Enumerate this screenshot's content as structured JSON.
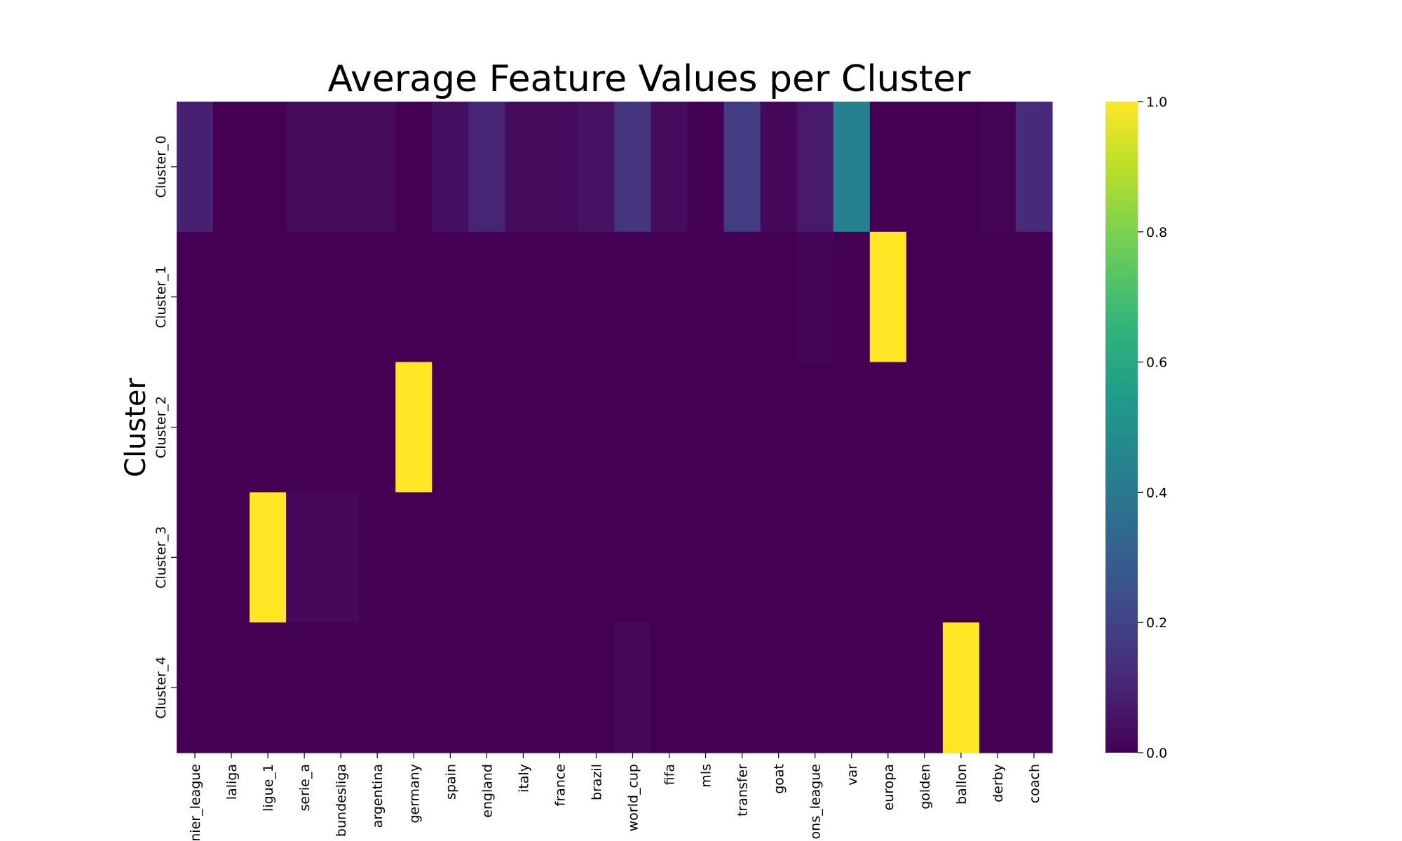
{
  "chart_data": {
    "type": "heatmap",
    "title": "Average Feature Values per Cluster",
    "xlabel": "",
    "ylabel": "Cluster",
    "x_categories": [
      "premier_league",
      "laliga",
      "ligue_1",
      "serie_a",
      "bundesliga",
      "argentina",
      "germany",
      "spain",
      "england",
      "italy",
      "france",
      "brazil",
      "world_cup",
      "fifa",
      "mls",
      "transfer",
      "goat",
      "champions_league",
      "var",
      "europa",
      "golden",
      "ballon",
      "derby",
      "coach"
    ],
    "x_tick_labels": [
      "nier_league",
      "laliga",
      "ligue_1",
      "serie_a",
      "bundesliga",
      "argentina",
      "germany",
      "spain",
      "england",
      "italy",
      "france",
      "brazil",
      "world_cup",
      "fifa",
      "mls",
      "transfer",
      "goat",
      "ons_league",
      "var",
      "europa",
      "golden",
      "ballon",
      "derby",
      "coach"
    ],
    "y_categories": [
      "Cluster_0",
      "Cluster_1",
      "Cluster_2",
      "Cluster_3",
      "Cluster_4"
    ],
    "values": [
      [
        0.09,
        0.0,
        0.0,
        0.03,
        0.03,
        0.03,
        0.0,
        0.04,
        0.1,
        0.03,
        0.03,
        0.05,
        0.15,
        0.03,
        0.0,
        0.18,
        0.02,
        0.07,
        0.44,
        0.0,
        0.0,
        0.0,
        0.01,
        0.12
      ],
      [
        0.0,
        0.0,
        0.0,
        0.0,
        0.0,
        0.0,
        0.0,
        0.0,
        0.0,
        0.0,
        0.0,
        0.0,
        0.0,
        0.0,
        0.0,
        0.0,
        0.0,
        0.01,
        0.0,
        1.0,
        0.0,
        0.0,
        0.0,
        0.0
      ],
      [
        0.0,
        0.0,
        0.0,
        0.0,
        0.0,
        0.0,
        1.0,
        0.0,
        0.0,
        0.0,
        0.0,
        0.0,
        0.0,
        0.0,
        0.0,
        0.0,
        0.0,
        0.0,
        0.0,
        0.0,
        0.0,
        0.0,
        0.0,
        0.0
      ],
      [
        0.0,
        0.0,
        1.0,
        0.02,
        0.02,
        0.0,
        0.0,
        0.0,
        0.0,
        0.0,
        0.0,
        0.0,
        0.0,
        0.0,
        0.0,
        0.0,
        0.0,
        0.0,
        0.0,
        0.0,
        0.0,
        0.0,
        0.0,
        0.0
      ],
      [
        0.0,
        0.0,
        0.0,
        0.0,
        0.0,
        0.0,
        0.0,
        0.0,
        0.0,
        0.0,
        0.0,
        0.0,
        0.02,
        0.0,
        0.0,
        0.0,
        0.0,
        0.0,
        0.0,
        0.0,
        0.0,
        1.0,
        0.0,
        0.0
      ]
    ],
    "colormap": "viridis",
    "vmin": 0.0,
    "vmax": 1.0,
    "colorbar_ticks": [
      "0.0",
      "0.2",
      "0.4",
      "0.6",
      "0.8",
      "1.0"
    ],
    "colorbar_tick_values": [
      0.0,
      0.2,
      0.4,
      0.6,
      0.8,
      1.0
    ],
    "grid": false,
    "legend": "colorbar-right"
  }
}
